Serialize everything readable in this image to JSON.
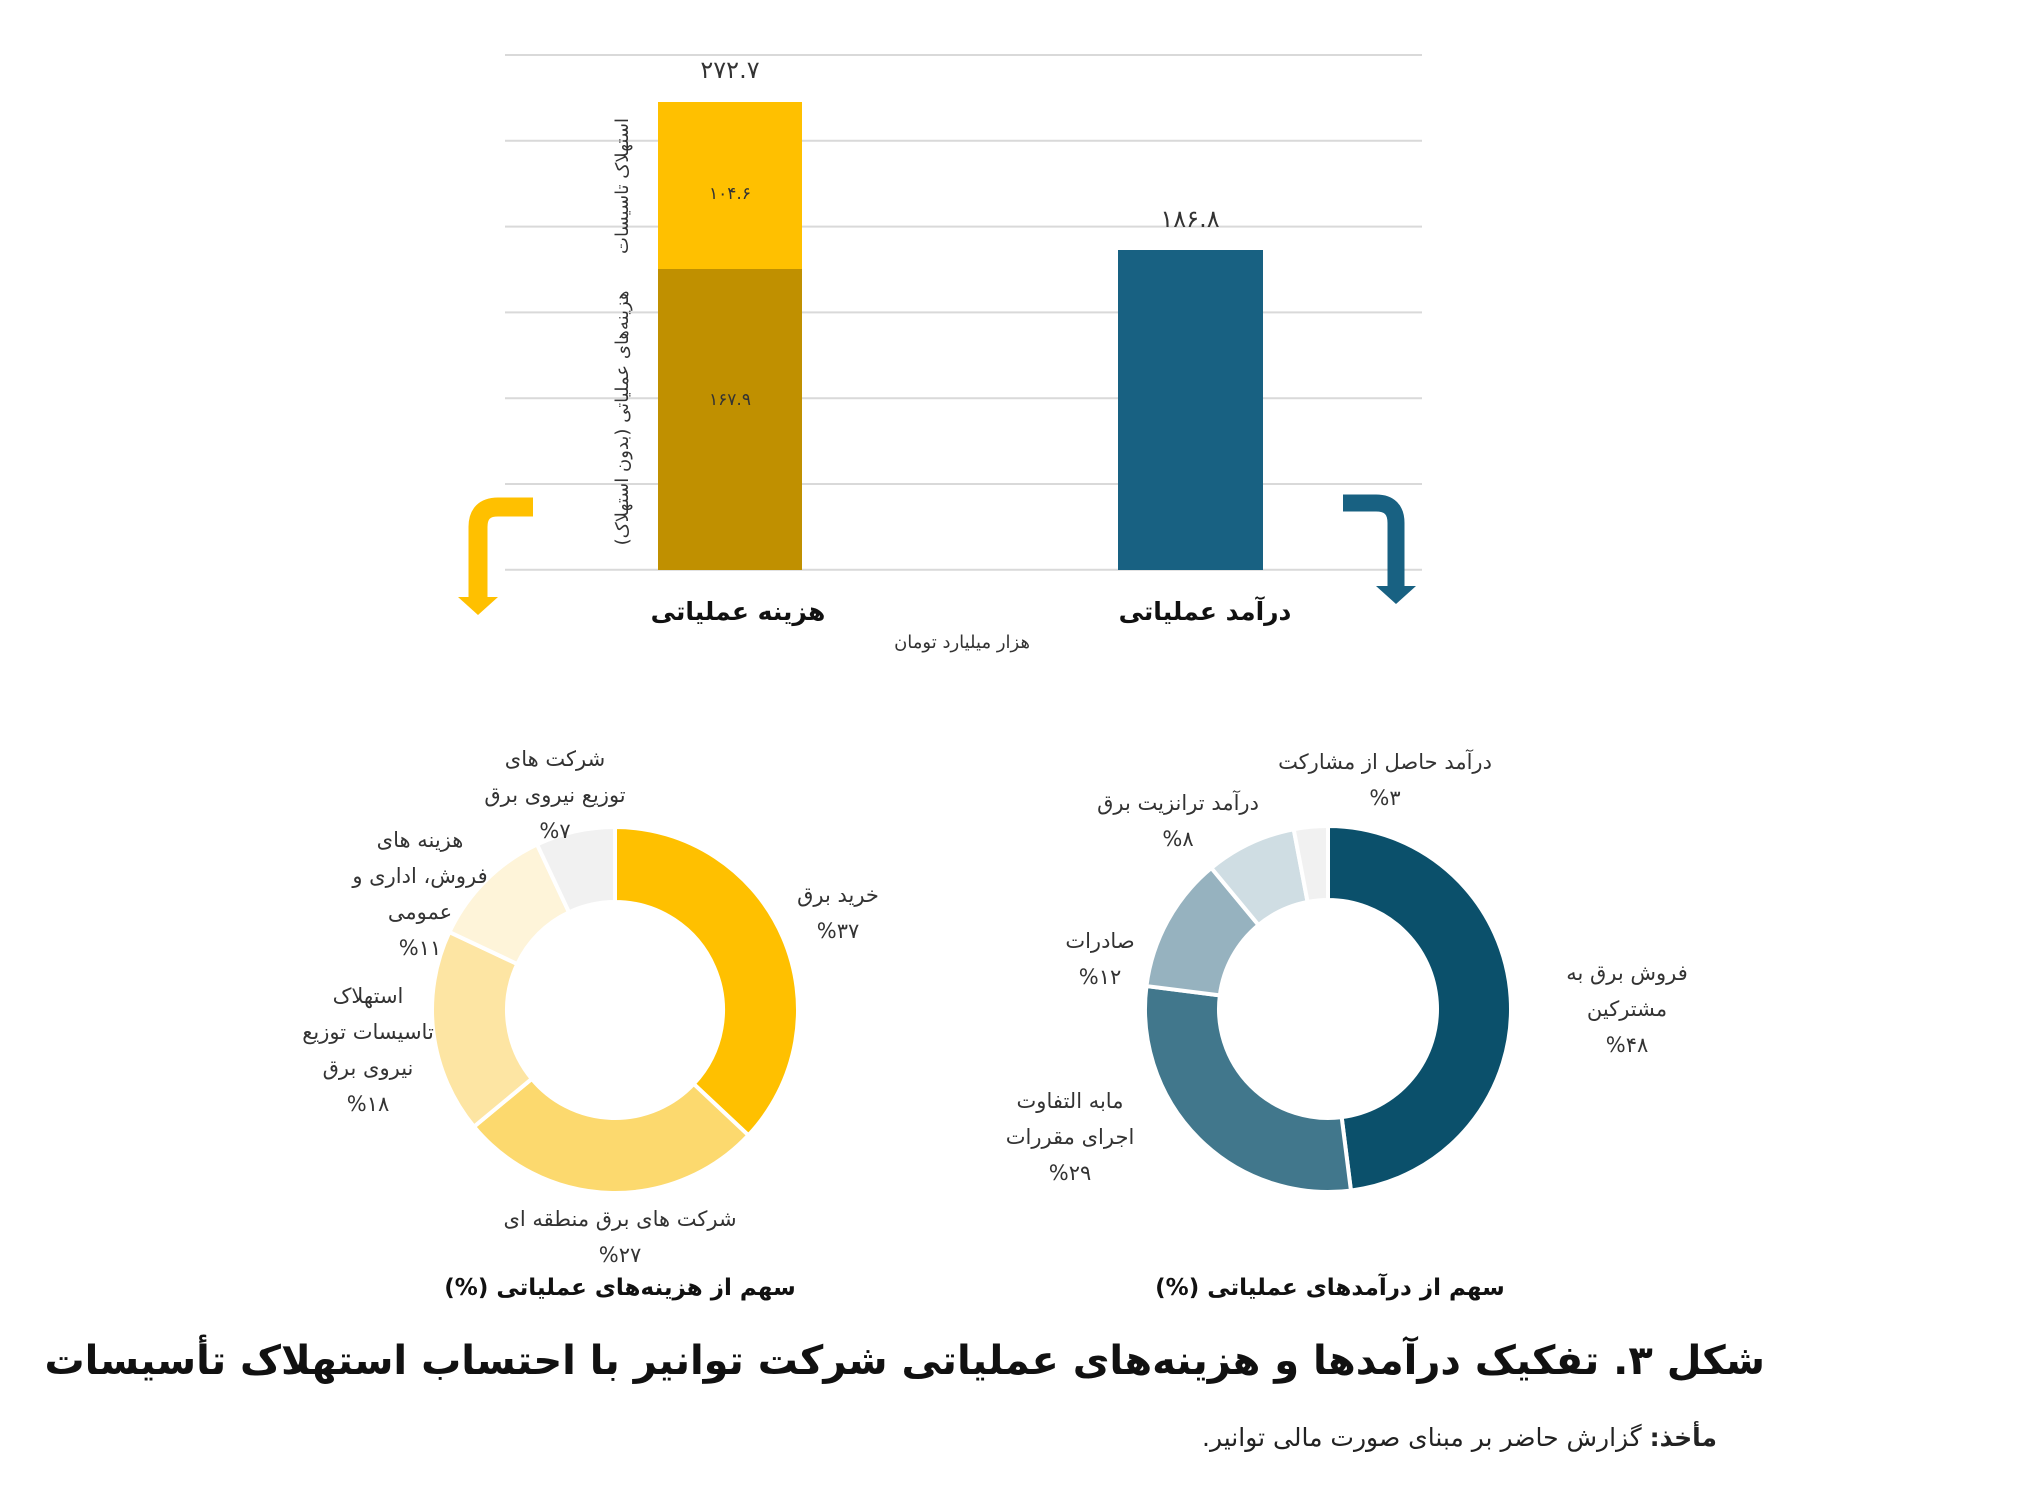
{
  "chart_data": [
    {
      "type": "bar",
      "stacked": true,
      "unit_label": "هزار میلیارد تومان",
      "categories": [
        "هزینه عملیاتی",
        "درآمد عملیاتی"
      ],
      "series": [
        {
          "name": "هزینه‌های عملیاتی (بدون استهلاک)",
          "color": "#C09000",
          "values": [
            167.9,
            null
          ]
        },
        {
          "name": "استهلاک تاسیسات",
          "color": "#FFC000",
          "values": [
            104.6,
            null
          ]
        },
        {
          "name": "درآمد عملیاتی",
          "color": "#186182",
          "values": [
            null,
            186.8
          ]
        }
      ],
      "totals": [
        272.7,
        186.8
      ],
      "value_labels": {
        "cost_total": "۲۷۲.۷",
        "cost_depreciation": "۱۰۴.۶",
        "cost_operating": "۱۶۷.۹",
        "revenue_total": "۱۸۶.۸"
      },
      "segment_labels": {
        "depreciation": "استهلاک تاسیسات",
        "operating": "هزینه‌های عملیاتی (بدون استهلاک)"
      },
      "gridlines": 7,
      "ylim": [
        0,
        300
      ],
      "grid": true,
      "legend_position": "inline-vertical"
    },
    {
      "type": "pie",
      "donut": true,
      "title": "سهم از هزینه‌های عملیاتی (%)",
      "slices": [
        {
          "label": "خرید برق",
          "value": 37,
          "display": "%۳۷",
          "color": "#FFC000"
        },
        {
          "label": "شرکت های برق منطقه ای",
          "value": 27,
          "display": "%۲۷",
          "color": "#FCD96E"
        },
        {
          "label": "استهلاک تاسیسات توزیع نیروی برق",
          "value": 18,
          "display": "%۱۸",
          "color": "#FDE5A3"
        },
        {
          "label": "هزینه های فروش، اداری و عمومی",
          "value": 11,
          "display": "%۱۱",
          "color": "#FEF4D9"
        },
        {
          "label": "شرکت های توزیع نیروی برق",
          "value": 7,
          "display": "%۷",
          "color": "#F1F1F1"
        }
      ]
    },
    {
      "type": "pie",
      "donut": true,
      "title": "سهم از درآمدهای عملیاتی (%)",
      "slices": [
        {
          "label": "فروش برق به مشترکین",
          "value": 48,
          "display": "%۴۸",
          "color": "#0B506B"
        },
        {
          "label": "مابه التفاوت اجرای مقررات",
          "value": 29,
          "display": "%۲۹",
          "color": "#41778C"
        },
        {
          "label": "صادرات",
          "value": 12,
          "display": "%۱۲",
          "color": "#96B2BF"
        },
        {
          "label": "درآمد ترانزیت برق",
          "value": 8,
          "display": "%۸",
          "color": "#CFDDE3"
        },
        {
          "label": "درآمد حاصل از مشارکت",
          "value": 3,
          "display": "%۳",
          "color": "#F1F1F1"
        }
      ]
    }
  ],
  "figure": {
    "title": "شکل ۳. تفکیک درآمدها و هزینه‌های عملیاتی شرکت توانیر با احتساب استهلاک تأسیسات",
    "source_label": "مأخذ:",
    "source_text": " گزارش حاضر بر مبنای صورت مالی توانیر."
  },
  "bar_chart": {
    "unit": "هزار میلیارد تومان",
    "cost_category": "هزینه عملیاتی",
    "revenue_category": "درآمد عملیاتی"
  },
  "cost_donut": {
    "title": "سهم از هزینه‌های عملیاتی (%)",
    "labels": [
      {
        "lines": [
          "خرید برق",
          "%۳۷"
        ]
      },
      {
        "lines": [
          "شرکت های برق منطقه ای",
          "%۲۷"
        ]
      },
      {
        "lines": [
          "استهلاک",
          "تاسیسات توزیع",
          "نیروی برق",
          "%۱۸"
        ]
      },
      {
        "lines": [
          "هزینه های",
          "فروش، اداری و",
          "عمومی",
          "%۱۱"
        ]
      },
      {
        "lines": [
          "شرکت های",
          "توزیع نیروی برق",
          "%۷"
        ]
      }
    ]
  },
  "revenue_donut": {
    "title": "سهم از درآمدهای عملیاتی (%)",
    "labels": [
      {
        "lines": [
          "فروش برق به",
          "مشترکین",
          "%۴۸"
        ]
      },
      {
        "lines": [
          "مابه التفاوت",
          "اجرای مقررات",
          "%۲۹"
        ]
      },
      {
        "lines": [
          "صادرات",
          "%۱۲"
        ]
      },
      {
        "lines": [
          "درآمد ترانزیت برق",
          "%۸"
        ]
      },
      {
        "lines": [
          "درآمد حاصل از مشارکت",
          "%۳"
        ]
      }
    ]
  }
}
